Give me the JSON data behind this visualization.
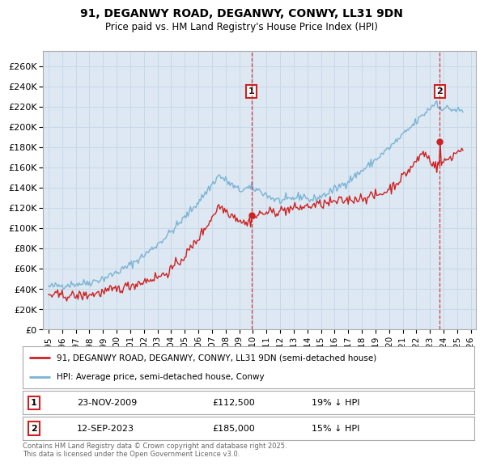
{
  "title1": "91, DEGANWY ROAD, DEGANWY, CONWY, LL31 9DN",
  "title2": "Price paid vs. HM Land Registry's House Price Index (HPI)",
  "ylim": [
    0,
    275000
  ],
  "yticks": [
    0,
    20000,
    40000,
    60000,
    80000,
    100000,
    120000,
    140000,
    160000,
    180000,
    200000,
    220000,
    240000,
    260000
  ],
  "ytick_labels": [
    "£0",
    "£20K",
    "£40K",
    "£60K",
    "£80K",
    "£100K",
    "£120K",
    "£140K",
    "£160K",
    "£180K",
    "£200K",
    "£220K",
    "£240K",
    "£260K"
  ],
  "hpi_color": "#7ab3d4",
  "price_color": "#cc2222",
  "sale1_date": 2009.9,
  "sale1_price": 112500,
  "sale2_date": 2023.71,
  "sale2_price": 185000,
  "vline_color": "#cc2222",
  "grid_color": "#c8d8e8",
  "bg_color": "#dde8f2",
  "legend_label_price": "91, DEGANWY ROAD, DEGANWY, CONWY, LL31 9DN (semi-detached house)",
  "legend_label_hpi": "HPI: Average price, semi-detached house, Conwy",
  "footer": "Contains HM Land Registry data © Crown copyright and database right 2025.\nThis data is licensed under the Open Government Licence v3.0.",
  "xlim_start": 1994.6,
  "xlim_end": 2026.4
}
